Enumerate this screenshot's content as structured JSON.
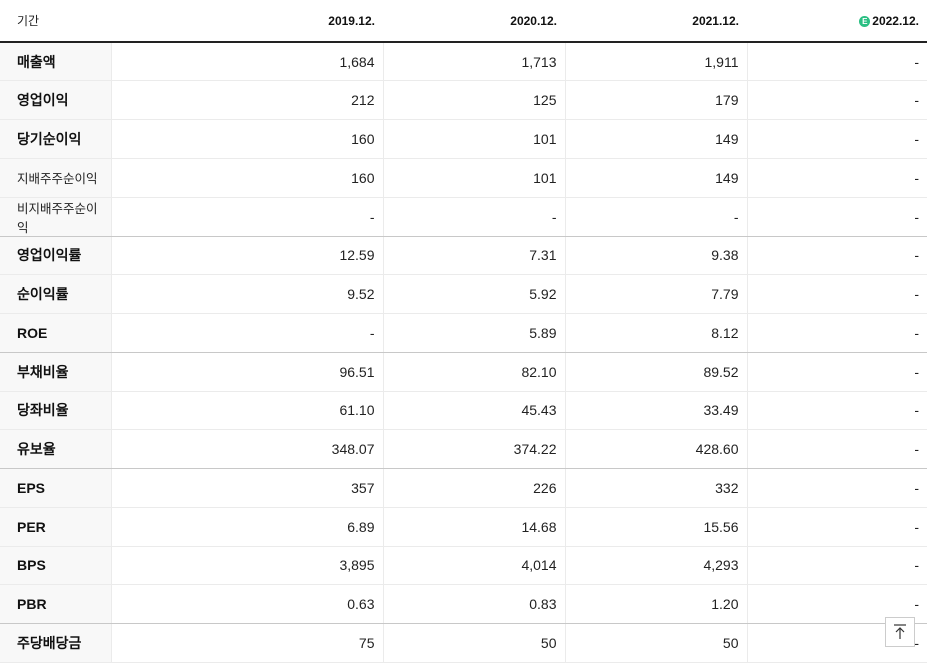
{
  "table": {
    "header": {
      "label": "기간",
      "periods": [
        "2019.12.",
        "2020.12.",
        "2021.12.",
        "2022.12."
      ],
      "estimate_badge": "E"
    },
    "rows": [
      {
        "label": "매출액",
        "values": [
          "1,684",
          "1,713",
          "1,911",
          "-"
        ]
      },
      {
        "label": "영업이익",
        "values": [
          "212",
          "125",
          "179",
          "-"
        ]
      },
      {
        "label": "당기순이익",
        "values": [
          "160",
          "101",
          "149",
          "-"
        ]
      },
      {
        "label": "지배주주순이익",
        "values": [
          "160",
          "101",
          "149",
          "-"
        ]
      },
      {
        "label": "비지배주주순이익",
        "values": [
          "-",
          "-",
          "-",
          "-"
        ]
      },
      {
        "label": "영업이익률",
        "values": [
          "12.59",
          "7.31",
          "9.38",
          "-"
        ]
      },
      {
        "label": "순이익률",
        "values": [
          "9.52",
          "5.92",
          "7.79",
          "-"
        ]
      },
      {
        "label": "ROE",
        "values": [
          "-",
          "5.89",
          "8.12",
          "-"
        ]
      },
      {
        "label": "부채비율",
        "values": [
          "96.51",
          "82.10",
          "89.52",
          "-"
        ]
      },
      {
        "label": "당좌비율",
        "values": [
          "61.10",
          "45.43",
          "33.49",
          "-"
        ]
      },
      {
        "label": "유보율",
        "values": [
          "348.07",
          "374.22",
          "428.60",
          "-"
        ]
      },
      {
        "label": "EPS",
        "values": [
          "357",
          "226",
          "332",
          "-"
        ]
      },
      {
        "label": "PER",
        "values": [
          "6.89",
          "14.68",
          "15.56",
          "-"
        ]
      },
      {
        "label": "BPS",
        "values": [
          "3,895",
          "4,014",
          "4,293",
          "-"
        ]
      },
      {
        "label": "PBR",
        "values": [
          "0.63",
          "0.83",
          "1.20",
          "-"
        ]
      },
      {
        "label": "주당배당금",
        "values": [
          "75",
          "50",
          "50",
          "-"
        ]
      }
    ]
  },
  "icons": {
    "scroll_top": "arrow-up-to-top-icon"
  },
  "colors": {
    "estimate_badge": "#2bbf83",
    "row_label_bg": "#f8f8f8"
  }
}
